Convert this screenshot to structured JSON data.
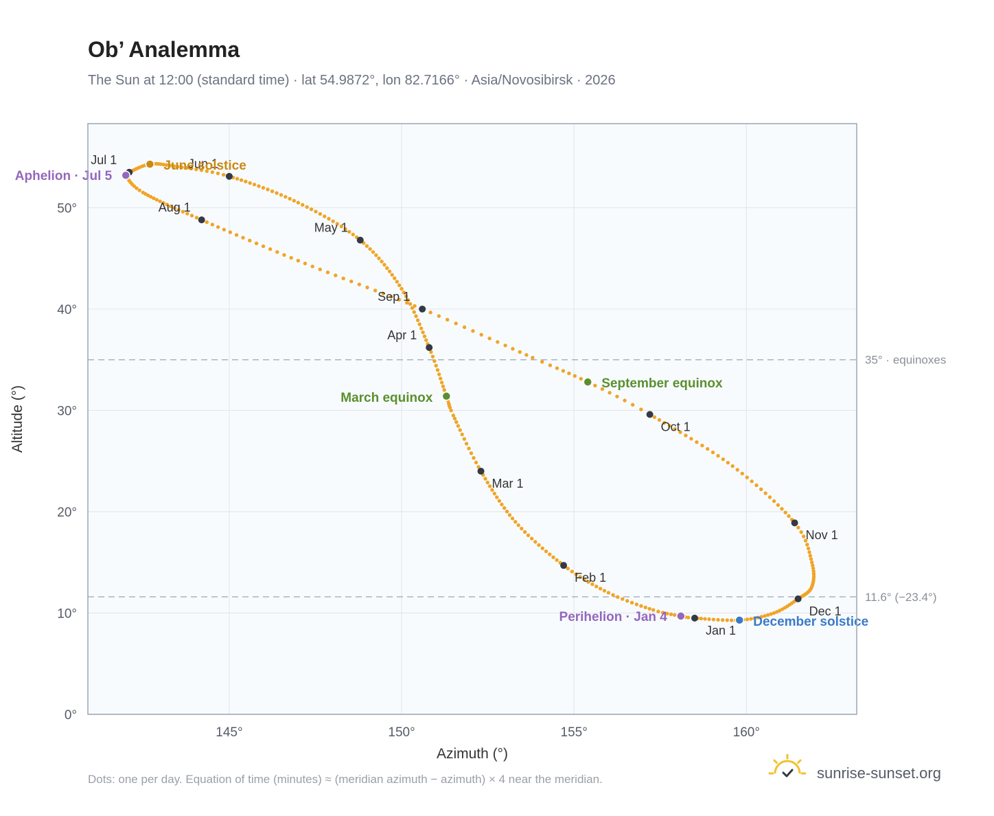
{
  "header": {
    "title": "Ob’ Analemma",
    "subtitle": "The Sun at 12:00 (standard time) · lat 54.9872°, lon 82.7166° · Asia/Novosibirsk · 2026"
  },
  "footer": {
    "note": "Dots: one per day. Equation of time (minutes) ≈ (meridian azimuth − azimuth) × 4 near the meridian.",
    "brand": "sunrise-sunset.org",
    "brand_icon": "sun-logo-icon"
  },
  "colors": {
    "curve": "#f0a526",
    "month_marker": "#333a44",
    "june_solstice": "#c98a14",
    "december_solstice": "#3a7bc8",
    "equinox": "#5a8f2e",
    "apsis": "#9467bd",
    "plot_background": "#f8fbfe",
    "grid": "#e3e8ee",
    "reference_line": "#a9b3bf"
  },
  "chart_data": {
    "type": "scatter",
    "xlabel": "Azimuth (°)",
    "ylabel": "Altitude (°)",
    "xlim": [
      140.9,
      163.2
    ],
    "ylim": [
      0,
      58.3
    ],
    "x_ticks": [
      {
        "value": 145,
        "label": "145°"
      },
      {
        "value": 150,
        "label": "150°"
      },
      {
        "value": 155,
        "label": "155°"
      },
      {
        "value": 160,
        "label": "160°"
      }
    ],
    "y_ticks": [
      {
        "value": 0,
        "label": "0°"
      },
      {
        "value": 10,
        "label": "10°"
      },
      {
        "value": 20,
        "label": "20°"
      },
      {
        "value": 30,
        "label": "30°"
      },
      {
        "value": 40,
        "label": "40°"
      },
      {
        "value": 50,
        "label": "50°"
      }
    ],
    "grid": true,
    "reference_lines": [
      {
        "altitude": 35.0,
        "label": "35° · equinoxes"
      },
      {
        "altitude": 11.6,
        "label": "11.6° (−23.4°)"
      }
    ],
    "series_note": "one dot per day; anchors below, daily positions interpolated",
    "month_markers": [
      {
        "label": "Jan 1",
        "azimuth": 158.5,
        "altitude": 9.5
      },
      {
        "label": "Feb 1",
        "azimuth": 154.7,
        "altitude": 14.7
      },
      {
        "label": "Mar 1",
        "azimuth": 152.3,
        "altitude": 24.0
      },
      {
        "label": "Apr 1",
        "azimuth": 150.8,
        "altitude": 36.2
      },
      {
        "label": "May 1",
        "azimuth": 148.8,
        "altitude": 46.8
      },
      {
        "label": "Jun 1",
        "azimuth": 145.0,
        "altitude": 53.1
      },
      {
        "label": "Jul 1",
        "azimuth": 142.1,
        "altitude": 53.5
      },
      {
        "label": "Aug 1",
        "azimuth": 144.2,
        "altitude": 48.8
      },
      {
        "label": "Sep 1",
        "azimuth": 150.6,
        "altitude": 40.0
      },
      {
        "label": "Oct 1",
        "azimuth": 157.2,
        "altitude": 29.6
      },
      {
        "label": "Nov 1",
        "azimuth": 161.4,
        "altitude": 18.9
      },
      {
        "label": "Dec 1",
        "azimuth": 161.5,
        "altitude": 11.4
      }
    ],
    "events": [
      {
        "label": "June solstice",
        "azimuth": 142.7,
        "altitude": 54.3,
        "color_key": "june_solstice"
      },
      {
        "label": "December solstice",
        "azimuth": 159.8,
        "altitude": 9.3,
        "color_key": "december_solstice"
      },
      {
        "label": "March equinox",
        "azimuth": 151.3,
        "altitude": 31.4,
        "color_key": "equinox"
      },
      {
        "label": "September equinox",
        "azimuth": 155.4,
        "altitude": 32.8,
        "color_key": "equinox"
      },
      {
        "label": "Aphelion · Jul 5",
        "azimuth": 142.0,
        "altitude": 53.2,
        "color_key": "apsis"
      },
      {
        "label": "Perihelion · Jan 4",
        "azimuth": 158.1,
        "altitude": 9.7,
        "color_key": "apsis"
      }
    ],
    "curve_anchors": [
      {
        "day": 0,
        "azimuth": 158.5,
        "altitude": 9.5
      },
      {
        "day": 3,
        "azimuth": 158.1,
        "altitude": 9.7
      },
      {
        "day": 10,
        "azimuth": 157.3,
        "altitude": 10.3
      },
      {
        "day": 20,
        "azimuth": 156.0,
        "altitude": 12.0
      },
      {
        "day": 31,
        "azimuth": 154.7,
        "altitude": 14.7
      },
      {
        "day": 45,
        "azimuth": 153.3,
        "altitude": 19.0
      },
      {
        "day": 59,
        "azimuth": 152.3,
        "altitude": 24.0
      },
      {
        "day": 72,
        "azimuth": 151.5,
        "altitude": 29.5
      },
      {
        "day": 78,
        "azimuth": 151.3,
        "altitude": 31.4
      },
      {
        "day": 90,
        "azimuth": 150.8,
        "altitude": 36.2
      },
      {
        "day": 105,
        "azimuth": 150.0,
        "altitude": 42.0
      },
      {
        "day": 120,
        "azimuth": 148.8,
        "altitude": 46.8
      },
      {
        "day": 135,
        "azimuth": 147.0,
        "altitude": 50.5
      },
      {
        "day": 151,
        "azimuth": 145.0,
        "altitude": 53.1
      },
      {
        "day": 162,
        "azimuth": 143.4,
        "altitude": 54.1
      },
      {
        "day": 171,
        "azimuth": 142.7,
        "altitude": 54.3
      },
      {
        "day": 181,
        "azimuth": 142.1,
        "altitude": 53.5
      },
      {
        "day": 186,
        "azimuth": 142.0,
        "altitude": 53.2
      },
      {
        "day": 196,
        "azimuth": 142.5,
        "altitude": 51.5
      },
      {
        "day": 212,
        "azimuth": 144.2,
        "altitude": 48.8
      },
      {
        "day": 228,
        "azimuth": 147.2,
        "altitude": 44.5
      },
      {
        "day": 243,
        "azimuth": 150.6,
        "altitude": 40.0
      },
      {
        "day": 257,
        "azimuth": 153.8,
        "altitude": 35.2
      },
      {
        "day": 265,
        "azimuth": 155.4,
        "altitude": 32.8
      },
      {
        "day": 273,
        "azimuth": 157.2,
        "altitude": 29.6
      },
      {
        "day": 289,
        "azimuth": 159.6,
        "altitude": 24.5
      },
      {
        "day": 304,
        "azimuth": 161.4,
        "altitude": 18.9
      },
      {
        "day": 314,
        "azimuth": 161.9,
        "altitude": 15.0
      },
      {
        "day": 324,
        "azimuth": 161.9,
        "altitude": 12.6
      },
      {
        "day": 334,
        "azimuth": 161.5,
        "altitude": 11.4
      },
      {
        "day": 344,
        "azimuth": 160.8,
        "altitude": 10.0
      },
      {
        "day": 354,
        "azimuth": 159.8,
        "altitude": 9.3
      },
      {
        "day": 365,
        "azimuth": 158.5,
        "altitude": 9.5
      }
    ]
  }
}
